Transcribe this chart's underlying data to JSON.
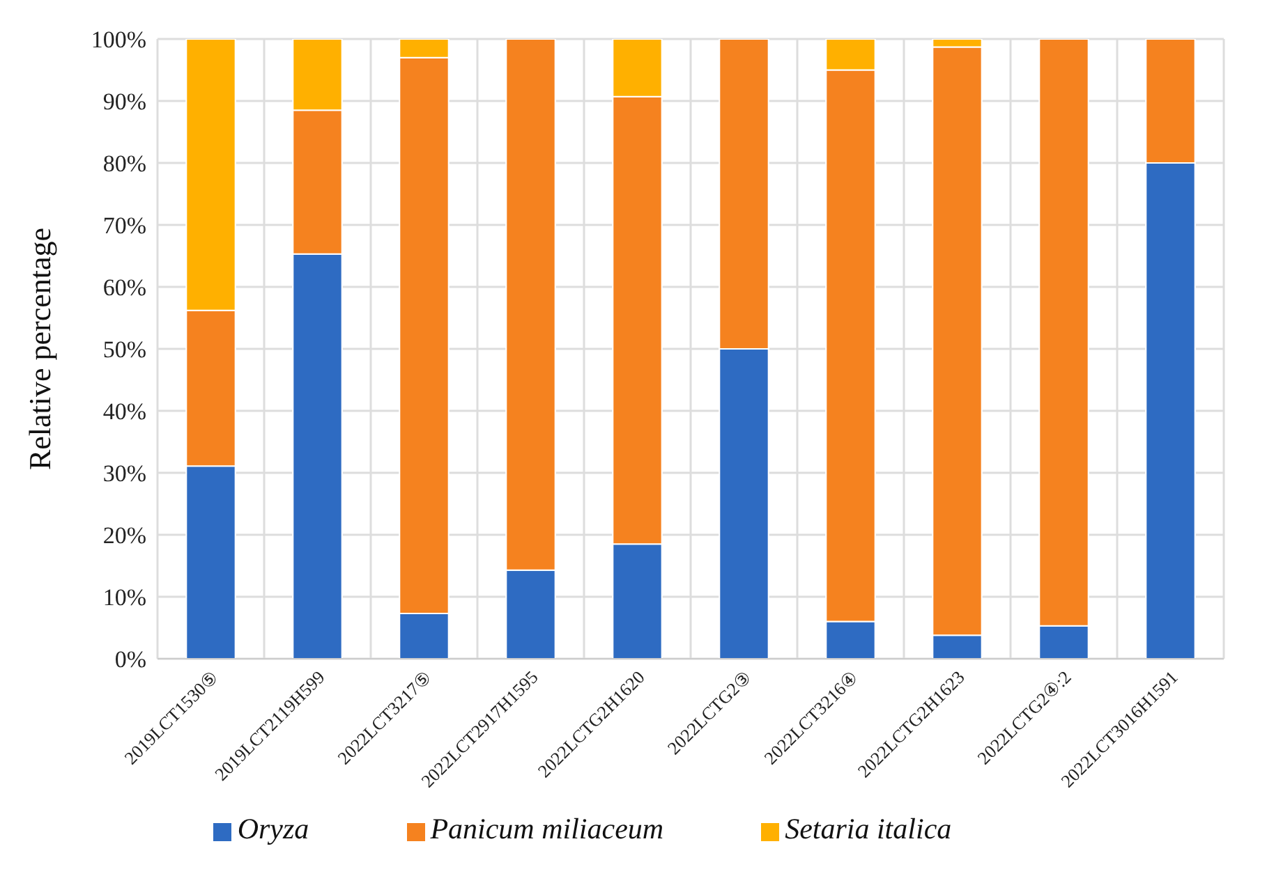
{
  "chart_data": {
    "type": "bar",
    "stacked": true,
    "ylabel": "Relative percentage",
    "categories": [
      "2019LCT1530⑤",
      "2019LCT2119H599",
      "2022LCT3217⑤",
      "2022LCT2917H1595",
      "2022LCTG2H1620",
      "2022LCTG2③",
      "2022LCT3216④",
      "2022LCTG2H1623",
      "2022LCTG2④:2",
      "2022LCT3016H1591"
    ],
    "series": [
      {
        "name": "Oryza",
        "color": "#2e6bc2",
        "values": [
          31.1,
          65.3,
          7.3,
          14.3,
          18.5,
          50,
          6,
          3.8,
          5.3,
          80
        ]
      },
      {
        "name": "Panicum miliaceum",
        "color": "#f5821f",
        "values": [
          25.1,
          23.2,
          89.7,
          85.7,
          72.2,
          50,
          89,
          94.9,
          94.7,
          20
        ]
      },
      {
        "name": "Setaria italica",
        "color": "#ffb000",
        "values": [
          43.8,
          11.5,
          3,
          0,
          9.3,
          0,
          5,
          1.3,
          0,
          0
        ]
      }
    ],
    "ylim": [
      0,
      100
    ],
    "yticks": [
      {
        "value": 0,
        "label": "0%"
      },
      {
        "value": 10,
        "label": "10%"
      },
      {
        "value": 20,
        "label": "20%"
      },
      {
        "value": 30,
        "label": "30%"
      },
      {
        "value": 40,
        "label": "40%"
      },
      {
        "value": 50,
        "label": "50%"
      },
      {
        "value": 60,
        "label": "60%"
      },
      {
        "value": 70,
        "label": "70%"
      },
      {
        "value": 80,
        "label": "80%"
      },
      {
        "value": 90,
        "label": "90%"
      },
      {
        "value": 100,
        "label": "100%"
      }
    ],
    "grid": true,
    "legend": "bottom"
  }
}
